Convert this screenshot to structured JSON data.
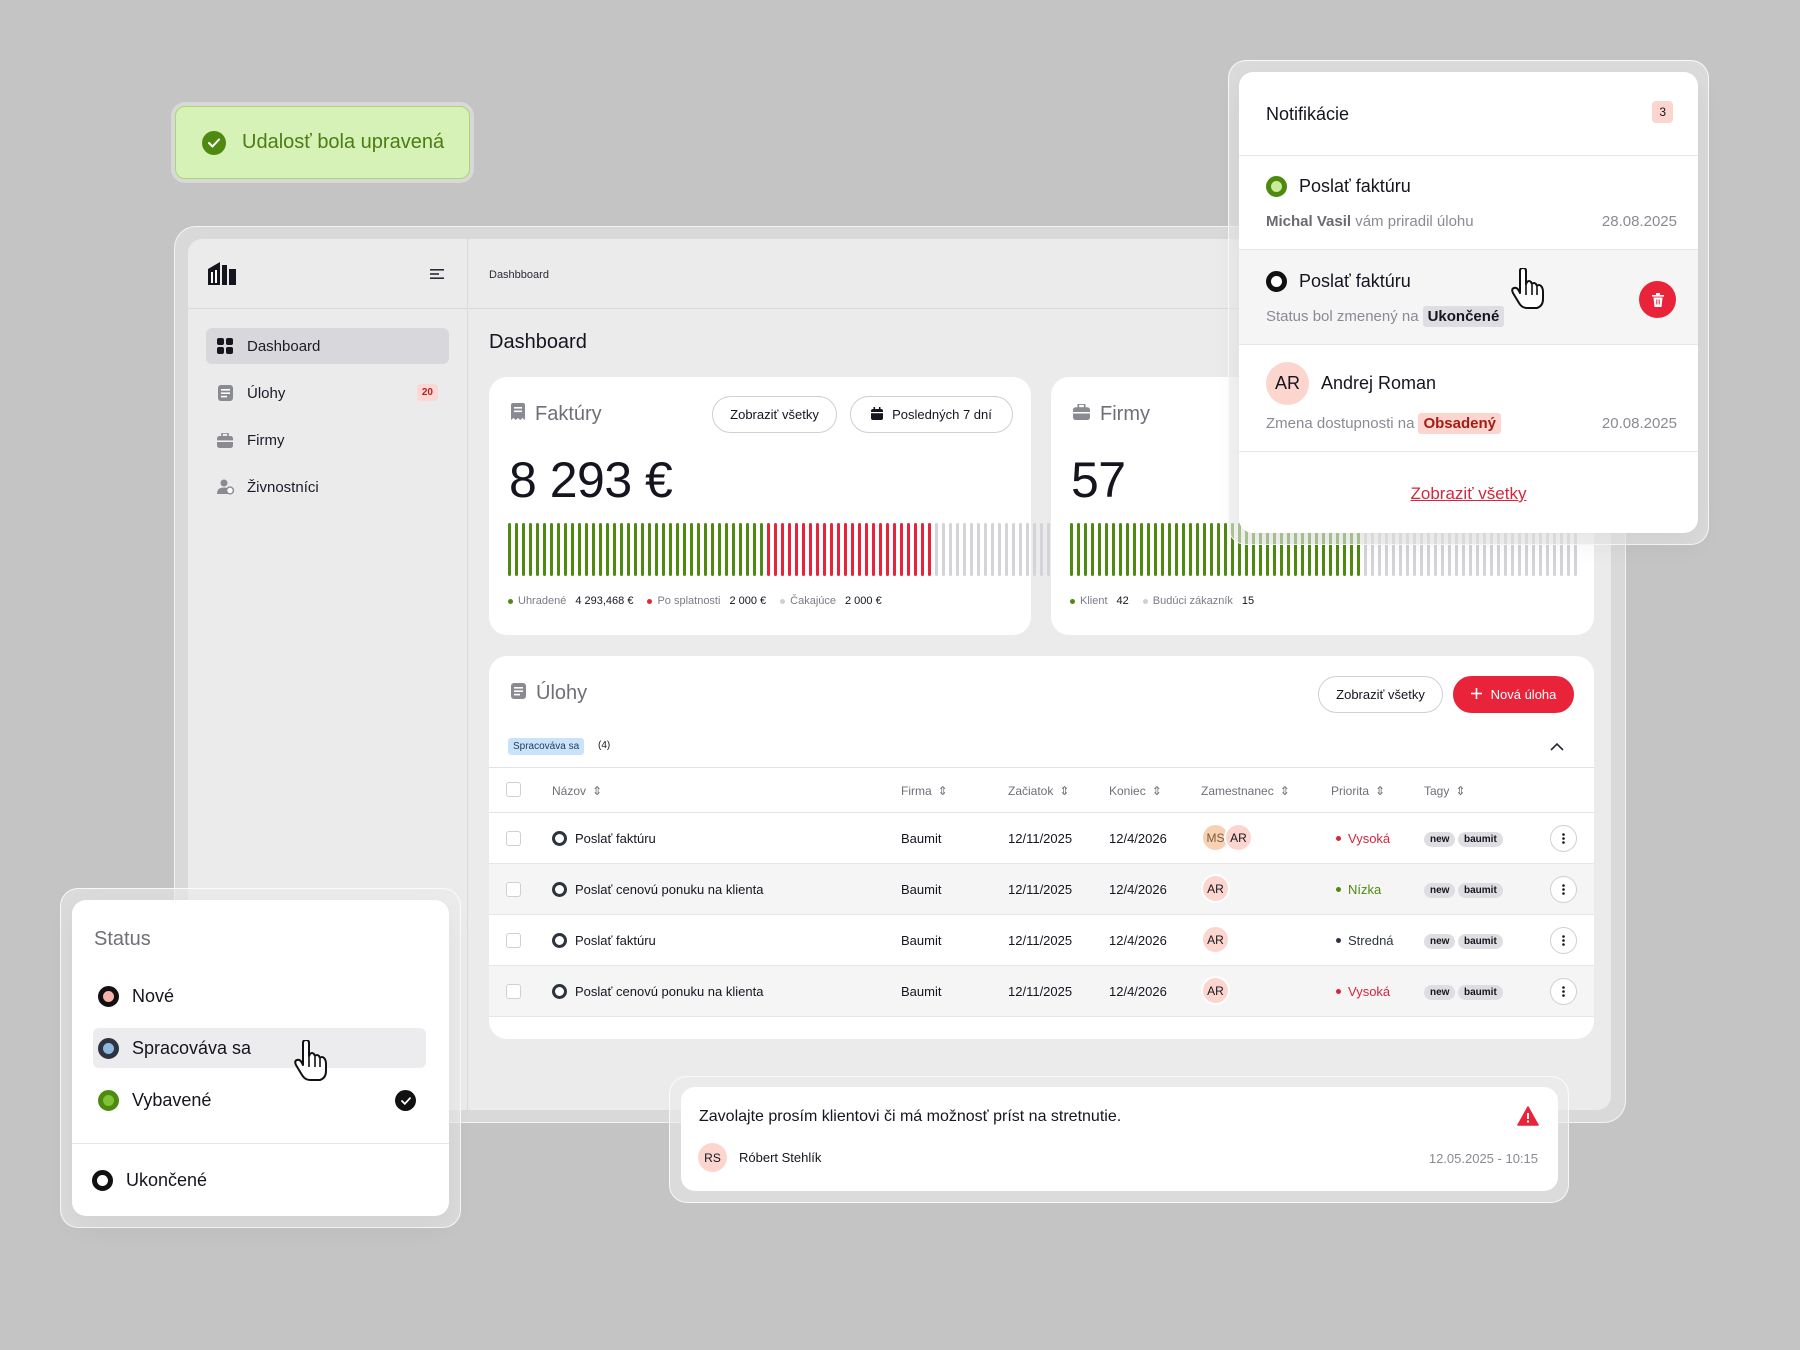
{
  "toast": {
    "text": "Udalosť bola upravená"
  },
  "sidebar": {
    "items": [
      {
        "label": "Dashboard",
        "icon": "grid-icon"
      },
      {
        "label": "Úlohy",
        "icon": "list-icon",
        "badge": "20"
      },
      {
        "label": "Firmy",
        "icon": "briefcase-icon"
      },
      {
        "label": "Živnostníci",
        "icon": "users-icon"
      }
    ]
  },
  "topbar": {
    "breadcrumb": "Dashbboard"
  },
  "page": {
    "title": "Dashboard"
  },
  "invoices": {
    "title": "Faktúry",
    "show_all": "Zobraziť všetky",
    "period": "Posledných 7 dní",
    "total": "8 293 €",
    "bar_counts": {
      "paid": 37,
      "overdue": 24,
      "waiting": 20
    },
    "legend": [
      {
        "label": "Uhradené",
        "value": "4 293,468 €",
        "color": "#4f8a10"
      },
      {
        "label": "Po splatnosti",
        "value": "2 000 €",
        "color": "#e8233a"
      },
      {
        "label": "Čakajúce",
        "value": "2 000 €",
        "color": "#cfcfd4"
      }
    ]
  },
  "companies": {
    "title": "Firmy",
    "total": "57",
    "bar_counts": {
      "client": 42,
      "future": 31
    },
    "legend": [
      {
        "label": "Klient",
        "value": "42",
        "color": "#4f8a10"
      },
      {
        "label": "Budúci zákazník",
        "value": "15",
        "color": "#cfcfd4"
      }
    ]
  },
  "tasks": {
    "title": "Úlohy",
    "show_all": "Zobraziť všetky",
    "new_task": "Nová úloha",
    "filter_tag": "Spracováva sa",
    "filter_count": "(4)",
    "columns": [
      "Názov",
      "Firma",
      "Začiatok",
      "Koniec",
      "Zamestnanec",
      "Priorita",
      "Tagy"
    ],
    "rows": [
      {
        "name": "Poslať faktúru",
        "company": "Baumit",
        "start": "12/11/2025",
        "end": "12/4/2026",
        "employees": [
          "MS",
          "AR"
        ],
        "priority": "Vysoká",
        "priority_color": "#d7263d",
        "tags": [
          "new",
          "baumit"
        ]
      },
      {
        "name": "Poslať cenovú ponuku na klienta",
        "company": "Baumit",
        "start": "12/11/2025",
        "end": "12/4/2026",
        "employees": [
          "AR"
        ],
        "priority": "Nízka",
        "priority_color": "#4f8a10",
        "tags": [
          "new",
          "baumit"
        ]
      },
      {
        "name": "Poslať faktúru",
        "company": "Baumit",
        "start": "12/11/2025",
        "end": "12/4/2026",
        "employees": [
          "AR"
        ],
        "priority": "Stredná",
        "priority_color": "#2d3440",
        "tags": [
          "new",
          "baumit"
        ]
      },
      {
        "name": "Poslať cenovú ponuku na klienta",
        "company": "Baumit",
        "start": "12/11/2025",
        "end": "12/4/2026",
        "employees": [
          "AR"
        ],
        "priority": "Vysoká",
        "priority_color": "#d7263d",
        "tags": [
          "new",
          "baumit"
        ]
      }
    ]
  },
  "notifications": {
    "title": "Notifikácie",
    "count": "3",
    "items": [
      {
        "title": "Poslať faktúru",
        "author": "Michal Vasil",
        "text": "vám priradil úlohu",
        "date": "28.08.2025"
      },
      {
        "title": "Poslať faktúru",
        "text": "Status bol zmenený na",
        "label": "Ukončené"
      },
      {
        "initials": "AR",
        "title": "Andrej Roman",
        "text": "Zmena dostupnosti na",
        "label": "Obsadený",
        "date": "20.08.2025"
      }
    ],
    "show_all": "Zobraziť všetky"
  },
  "status_menu": {
    "title": "Status",
    "options": [
      {
        "label": "Nové",
        "color": "#f5b3ab"
      },
      {
        "label": "Spracováva sa",
        "color": "#8fb8de"
      },
      {
        "label": "Vybavené",
        "color": "#7fc23a"
      },
      {
        "label": "Ukončené",
        "color": "#ffffff"
      }
    ]
  },
  "message": {
    "text": "Zavolajte prosím klientovi či má možnosť príst na stretnutie.",
    "initials": "RS",
    "author": "Róbert Stehlík",
    "date": "12.05.2025 - 10:15"
  }
}
